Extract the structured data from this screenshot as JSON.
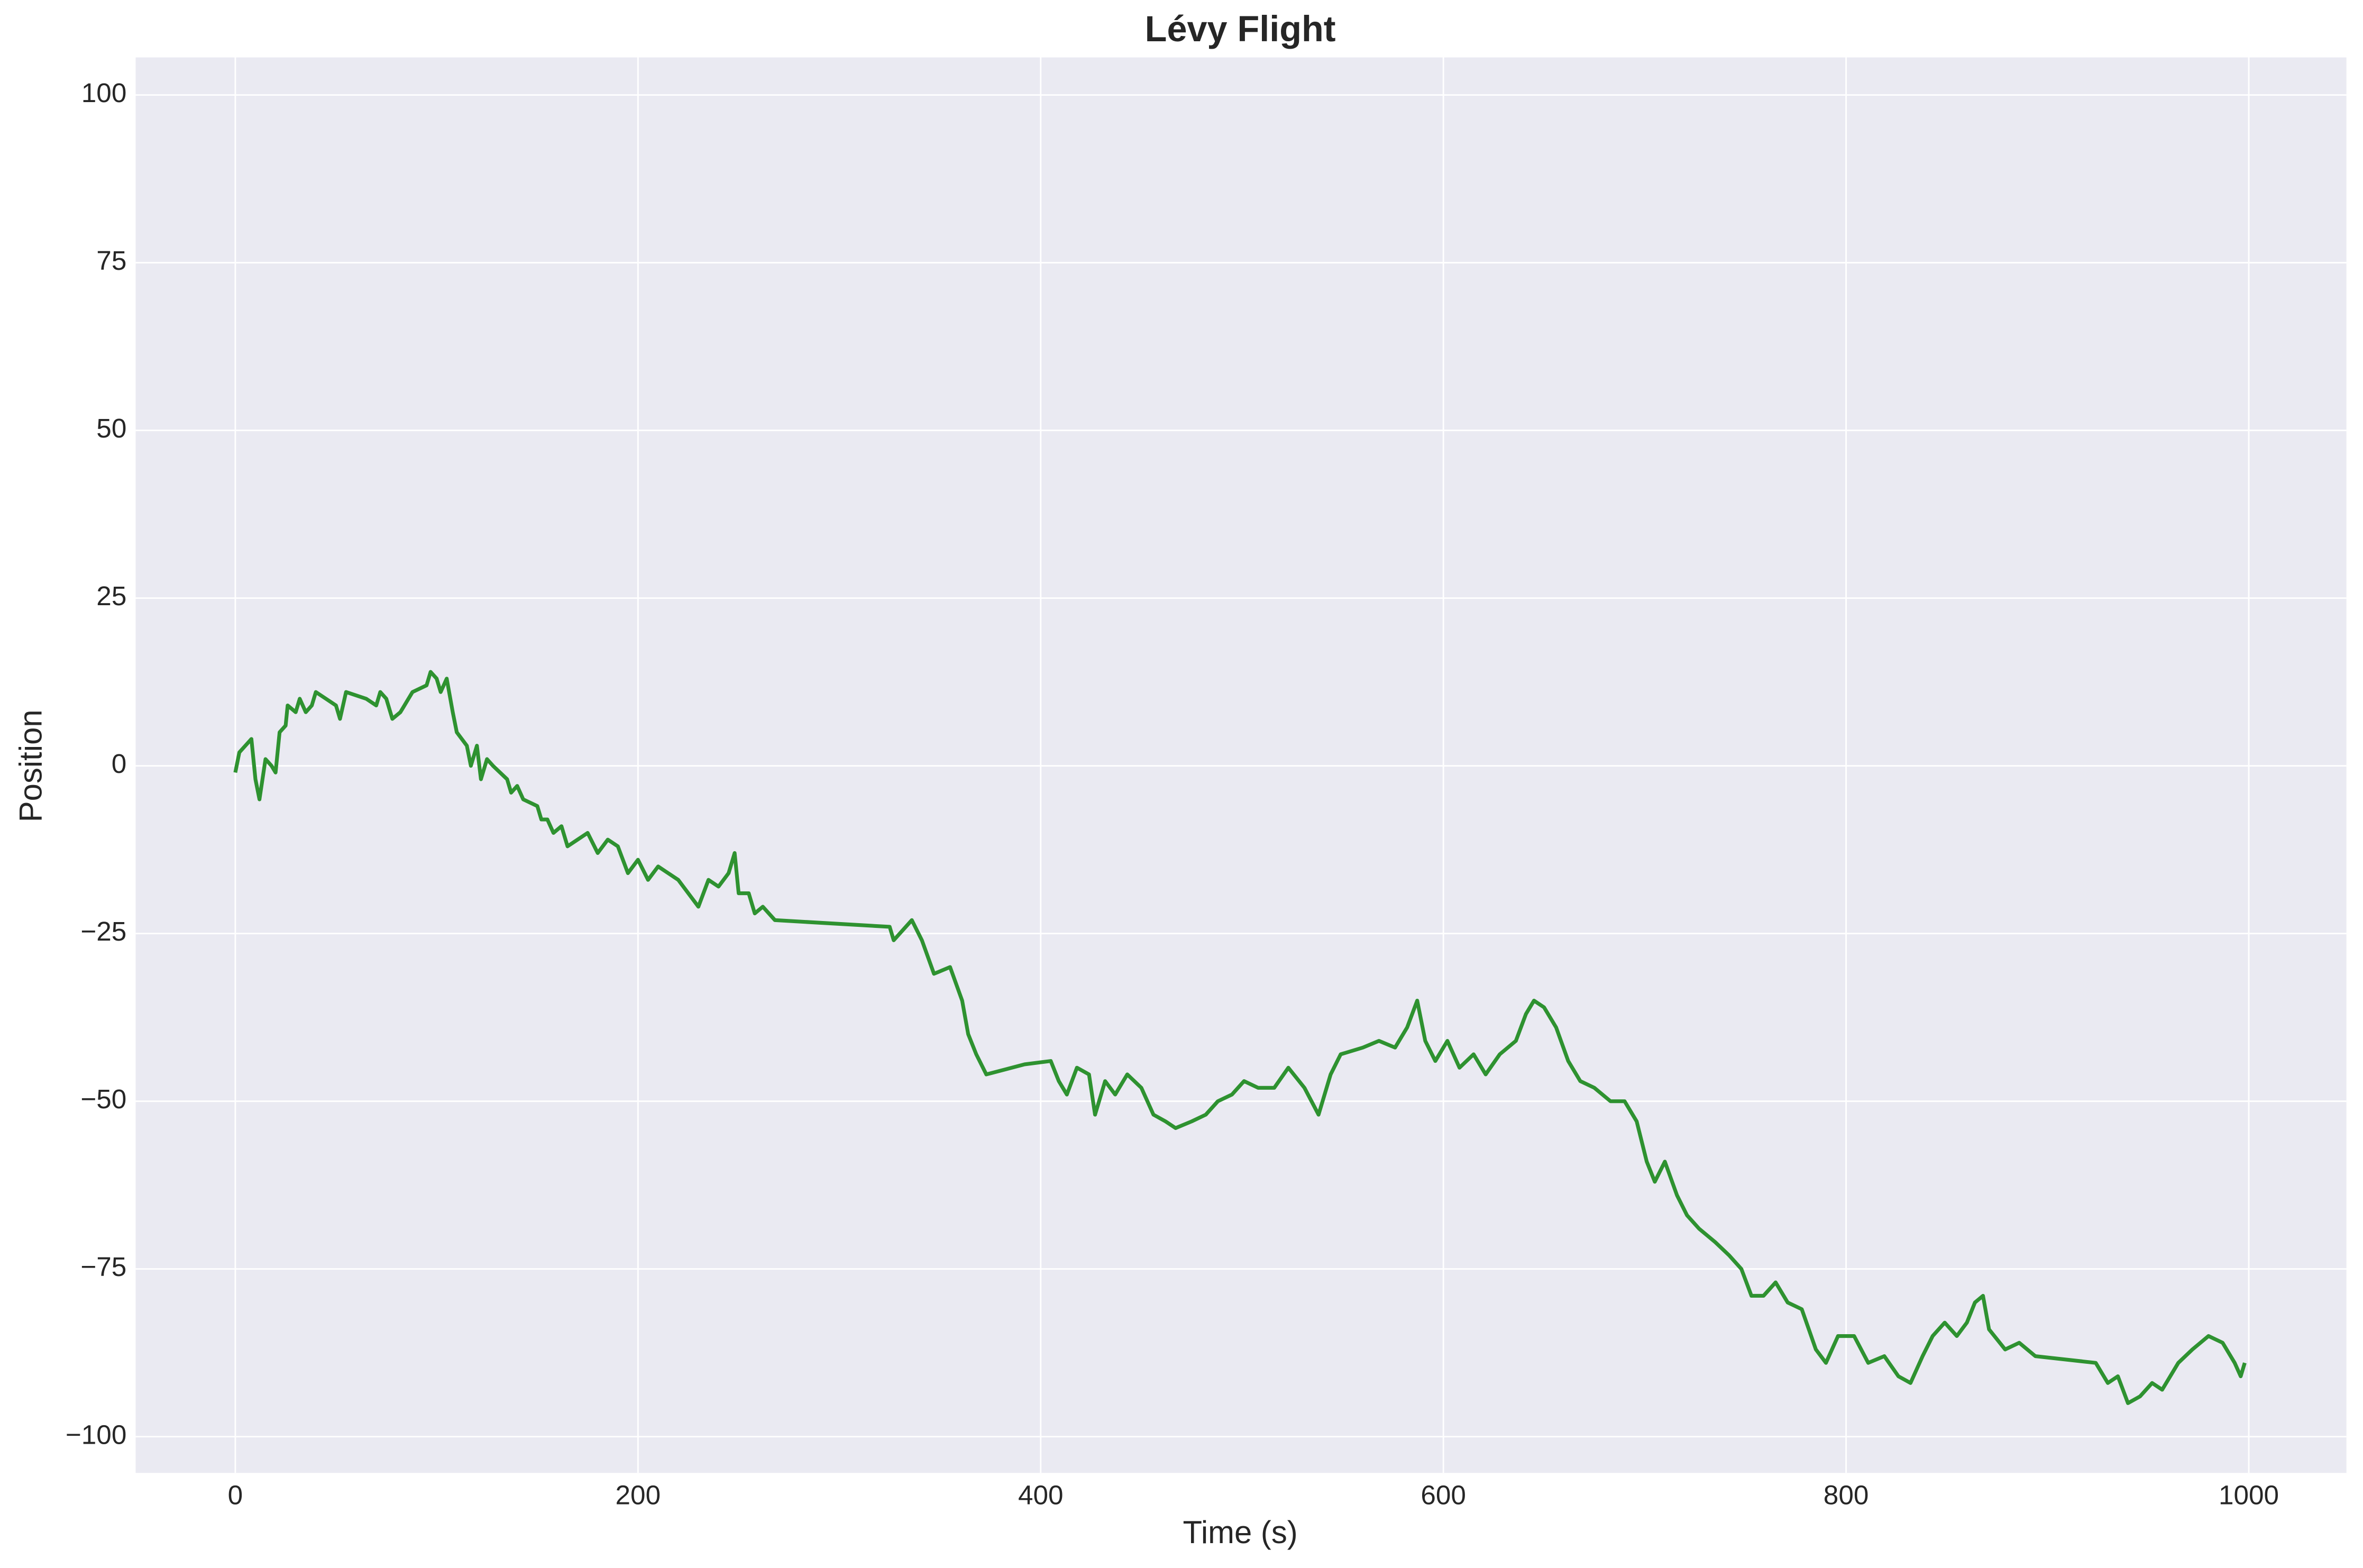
{
  "chart_data": {
    "type": "line",
    "title": "Lévy Flight",
    "x_label": "Time (s)",
    "y_label": "Position",
    "x": [
      0,
      2,
      8,
      10,
      12,
      15,
      18,
      20,
      22,
      25,
      26,
      30,
      32,
      35,
      38,
      40,
      45,
      50,
      52,
      55,
      65,
      70,
      72,
      75,
      78,
      82,
      88,
      95,
      97,
      100,
      102,
      105,
      108,
      110,
      115,
      117,
      120,
      122,
      125,
      128,
      135,
      137,
      140,
      143,
      150,
      152,
      155,
      158,
      162,
      165,
      170,
      175,
      180,
      185,
      190,
      195,
      200,
      205,
      210,
      215,
      220,
      225,
      230,
      235,
      240,
      245,
      248,
      250,
      255,
      258,
      262,
      268,
      325,
      327,
      336,
      341,
      347,
      355,
      361,
      364,
      368,
      373,
      392,
      405,
      409,
      413,
      418,
      424,
      427,
      432,
      437,
      443,
      450,
      456,
      462,
      467,
      475,
      482,
      488,
      495,
      501,
      508,
      516,
      523,
      531,
      538,
      544,
      549,
      560,
      568,
      576,
      582,
      587,
      591,
      596,
      602,
      608,
      615,
      621,
      628,
      636,
      641,
      645,
      650,
      656,
      662,
      668,
      675,
      683,
      690,
      696,
      701,
      705,
      710,
      716,
      721,
      727,
      735,
      742,
      748,
      753,
      759,
      765,
      771,
      778,
      785,
      790,
      796,
      804,
      811,
      819,
      826,
      832,
      838,
      843,
      849,
      855,
      860,
      864,
      868,
      871,
      879,
      886,
      894,
      924,
      930,
      935,
      940,
      946,
      952,
      957,
      965,
      972,
      980,
      987,
      993,
      996,
      998
    ],
    "series": [
      {
        "name": "Position",
        "color": "#2e9230",
        "values": [
          -1,
          2,
          4,
          -2,
          -5,
          1,
          0,
          -1,
          5,
          6,
          9,
          8,
          10,
          8,
          9,
          11,
          10,
          9,
          7,
          11,
          10,
          9,
          11,
          10,
          7,
          8,
          11,
          12,
          14,
          13,
          11,
          13,
          8,
          5,
          3,
          0,
          3,
          -2,
          1,
          0,
          -2,
          -4,
          -3,
          -5,
          -6,
          -8,
          -8,
          -10,
          -9,
          -12,
          -11,
          -10,
          -13,
          -11,
          -12,
          -16,
          -14,
          -17,
          -15,
          -16,
          -17,
          -19,
          -21,
          -17,
          -18,
          -16,
          -13,
          -19,
          -19,
          -22,
          -21,
          -23,
          -24,
          -26,
          -23,
          -26,
          -31,
          -30,
          -35,
          -40,
          -43,
          -46,
          -44.5,
          -44,
          -47,
          -49,
          -45,
          -46,
          -52,
          -47,
          -49,
          -46,
          -48,
          -52,
          -53,
          -54,
          -53,
          -52,
          -50,
          -49,
          -47,
          -48,
          -48,
          -45,
          -48,
          -52,
          -46,
          -43,
          -42,
          -41,
          -42,
          -39,
          -35,
          -41,
          -44,
          -41,
          -45,
          -43,
          -46,
          -43,
          -41,
          -37,
          -35,
          -36,
          -39,
          -44,
          -47,
          -48,
          -50,
          -50,
          -53,
          -59,
          -62,
          -59,
          -64,
          -67,
          -69,
          -71,
          -73,
          -75,
          -79,
          -79,
          -77,
          -80,
          -81,
          -87,
          -89,
          -85,
          -85,
          -89,
          -88,
          -91,
          -92,
          -88,
          -85,
          -83,
          -85,
          -83,
          -80,
          -79,
          -84,
          -87,
          -86,
          -88,
          -89,
          -92,
          -91,
          -95,
          -94,
          -92,
          -93,
          -89,
          -87,
          -85,
          -86,
          -89,
          -91,
          -89
        ]
      }
    ],
    "xlim": [
      -49.5,
      1048.5
    ],
    "ylim": [
      -105.4,
      105.6
    ],
    "xticks": [
      0,
      200,
      400,
      600,
      800,
      1000
    ],
    "yticks": [
      {
        "value": -100,
        "label": "−100"
      },
      {
        "value": -75,
        "label": "−75"
      },
      {
        "value": -50,
        "label": "−50"
      },
      {
        "value": -25,
        "label": "−25"
      },
      0,
      25,
      50,
      75,
      100
    ],
    "grid": true
  }
}
